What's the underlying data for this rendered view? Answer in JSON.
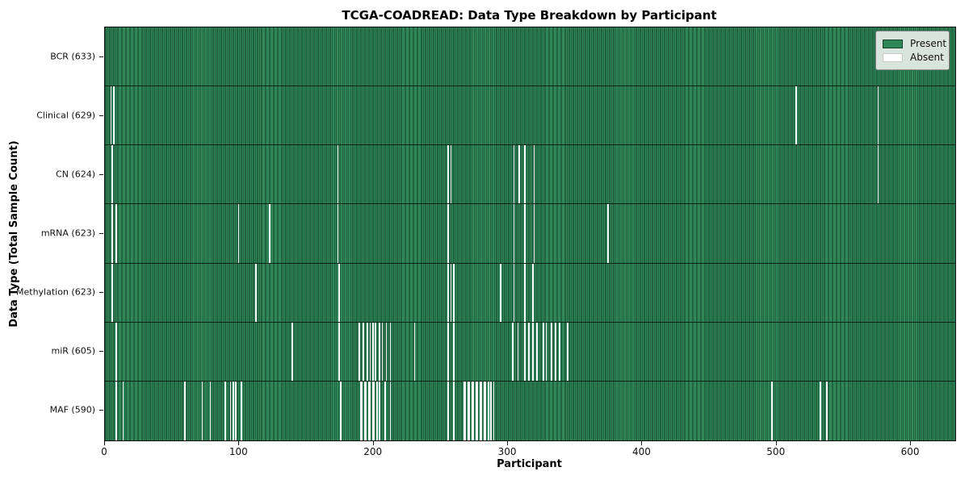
{
  "title": "TCGA-COADREAD: Data Type Breakdown by Participant",
  "axes": {
    "x_label": "Participant",
    "y_label": "Data Type (Total Sample Count)",
    "x_ticks": [
      0,
      100,
      200,
      300,
      400,
      500,
      600
    ],
    "x_min": 0,
    "x_max": 633
  },
  "legend": {
    "present_label": "Present",
    "absent_label": "Absent"
  },
  "colors": {
    "present": "#2f8758",
    "present_edge": "#16402a",
    "absent": "#f7f7f7",
    "legend_bg": "#e8eee8",
    "axis": "#111111"
  },
  "chart_data": {
    "type": "heatmap",
    "title": "TCGA-COADREAD: Data Type Breakdown by Participant",
    "xlabel": "Participant",
    "ylabel": "Data Type (Total Sample Count)",
    "x_range": [
      0,
      633
    ],
    "n_participants": 633,
    "legend_entries": [
      "Present",
      "Absent"
    ],
    "legend_position": "upper right",
    "grid": false,
    "rows": [
      {
        "label": "BCR",
        "total": 633,
        "display": "BCR (633)",
        "absent": []
      },
      {
        "label": "Clinical",
        "total": 629,
        "display": "Clinical (629)",
        "absent": [
          4,
          6,
          514,
          575
        ]
      },
      {
        "label": "CN",
        "total": 624,
        "display": "CN (624)",
        "absent": [
          5,
          173,
          255,
          257,
          304,
          308,
          312,
          319,
          575
        ]
      },
      {
        "label": "mRNA",
        "total": 623,
        "display": "mRNA (623)",
        "absent": [
          5,
          8,
          99,
          122,
          173,
          255,
          304,
          312,
          319,
          374
        ]
      },
      {
        "label": "Methylation",
        "total": 623,
        "display": "Methylation (623)",
        "absent": [
          5,
          112,
          174,
          255,
          257,
          259,
          294,
          304,
          312,
          318
        ]
      },
      {
        "label": "miR",
        "total": 605,
        "display": "miR (605)",
        "absent": [
          8,
          139,
          174,
          189,
          192,
          195,
          197,
          199,
          201,
          204,
          206,
          209,
          212,
          230,
          255,
          259,
          303,
          307,
          312,
          315,
          318,
          321,
          326,
          328,
          332,
          335,
          338,
          344
        ]
      },
      {
        "label": "MAF",
        "total": 590,
        "display": "MAF (590)",
        "absent": [
          8,
          13,
          59,
          72,
          78,
          89,
          93,
          95,
          97,
          101,
          175,
          190,
          191,
          193,
          194,
          196,
          197,
          199,
          200,
          202,
          204,
          208,
          212,
          255,
          259,
          267,
          268,
          270,
          271,
          273,
          274,
          276,
          277,
          279,
          280,
          282,
          283,
          285,
          287,
          289,
          496,
          532,
          537
        ]
      }
    ]
  }
}
